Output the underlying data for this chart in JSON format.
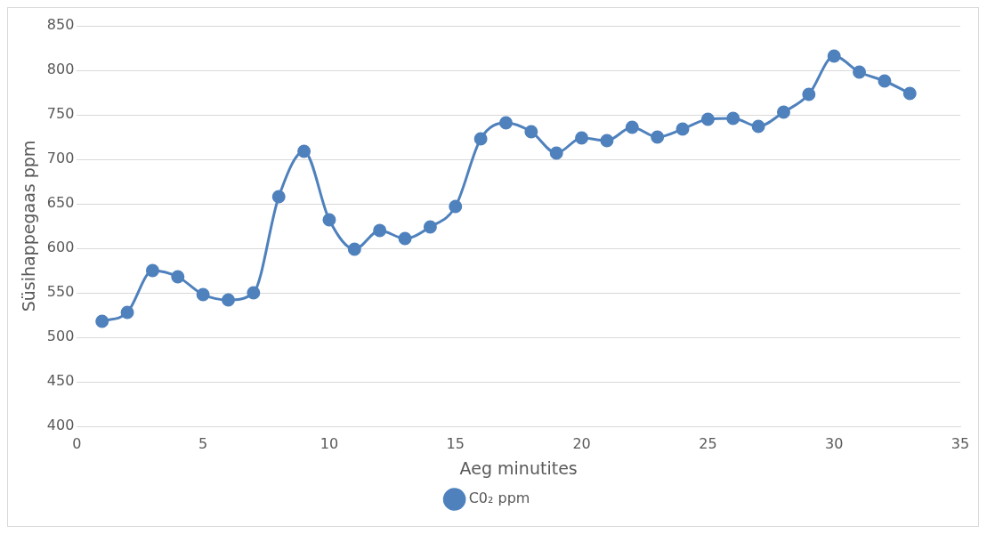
{
  "chart_data": {
    "type": "line",
    "xlabel": "Aeg minutites",
    "ylabel": "Süsihappegaas ppm",
    "x": [
      1,
      2,
      3,
      4,
      5,
      6,
      7,
      8,
      9,
      10,
      11,
      12,
      13,
      14,
      15,
      16,
      17,
      18,
      19,
      20,
      21,
      22,
      23,
      24,
      25,
      26,
      27,
      28,
      29,
      30,
      31,
      32,
      33
    ],
    "series": [
      {
        "name": "C0₂ ppm",
        "color": "#4f81bd",
        "values": [
          518,
          528,
          575,
          568,
          548,
          542,
          550,
          658,
          709,
          632,
          599,
          620,
          611,
          624,
          647,
          723,
          741,
          731,
          707,
          724,
          721,
          736,
          725,
          734,
          745,
          746,
          737,
          753,
          773,
          816,
          798,
          788,
          774
        ]
      }
    ],
    "xlim": [
      0,
      35
    ],
    "xticks": [
      0,
      5,
      10,
      15,
      20,
      25,
      30,
      35
    ],
    "ylim": [
      400,
      850
    ],
    "yticks": [
      400,
      450,
      500,
      550,
      600,
      650,
      700,
      750,
      800,
      850
    ],
    "grid": "y",
    "legend": "bottom",
    "marker": "circle",
    "line_style": "solid"
  }
}
